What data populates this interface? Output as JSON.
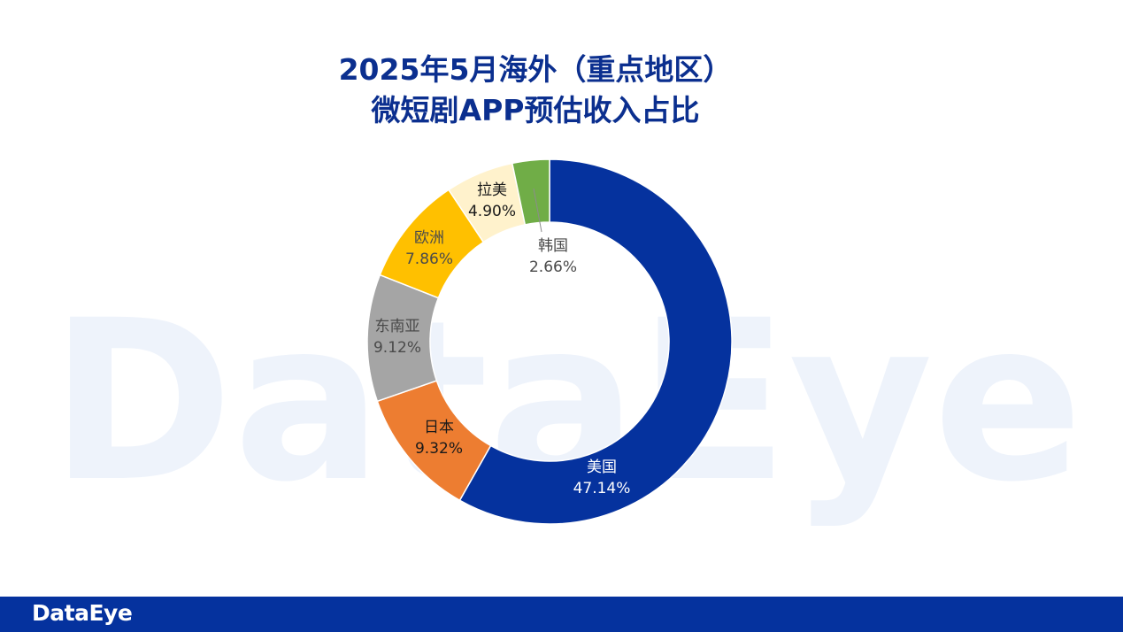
{
  "watermark": "DataEye",
  "chart_data": {
    "type": "pie",
    "donut": true,
    "title_lines": [
      "2025年5月海外（重点地区）",
      "微短剧APP预估收入占比"
    ],
    "slices": [
      {
        "name": "美国",
        "value": 47.14,
        "label": "47.14%",
        "color": "#05329e",
        "text_color": "#ffffff"
      },
      {
        "name": "日本",
        "value": 9.32,
        "label": "9.32%",
        "color": "#ed7d31",
        "text_color": "#1a1a1a"
      },
      {
        "name": "东南亚",
        "value": 9.12,
        "label": "9.12%",
        "color": "#a5a5a5",
        "text_color": "#4a4a4a"
      },
      {
        "name": "欧洲",
        "value": 7.86,
        "label": "7.86%",
        "color": "#ffc000",
        "text_color": "#4a4a4a"
      },
      {
        "name": "拉美",
        "value": 4.9,
        "label": "4.90%",
        "color": "#fff2cc",
        "text_color": "#1a1a1a"
      },
      {
        "name": "韩国",
        "value": 2.66,
        "label": "2.66%",
        "color": "#70ad47",
        "text_color": "#4a4a4a"
      }
    ]
  },
  "footer": {
    "logo": "DataEye",
    "bar_color": "#05329e"
  }
}
